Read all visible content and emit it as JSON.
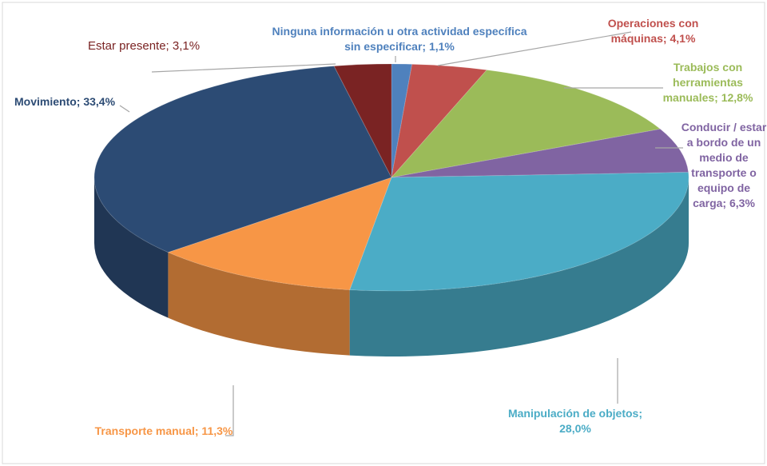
{
  "chart_data": {
    "type": "pie3d",
    "value_labels": [
      "Ninguna información u otra actividad específica sin especificar; 1,1%",
      "Operaciones con máquinas; 4,1%",
      "Trabajos con herramientas manuales; 12,8%",
      "Conducir / estar a bordo de un medio de transporte o equipo de carga; 6,3%",
      "Manipulación de objetos; 28,0%",
      "Transporte manual; 11,3%",
      "Movimiento; 33,4%",
      "Estar presente; 3,1%"
    ],
    "values": [
      1.1,
      4.1,
      12.8,
      6.3,
      28.0,
      11.3,
      33.4,
      3.1
    ],
    "colors": [
      "#4f81bd",
      "#c0504d",
      "#9bbb59",
      "#8064a2",
      "#4bacc6",
      "#f79646",
      "#2c4b74",
      "#7a2323"
    ]
  }
}
